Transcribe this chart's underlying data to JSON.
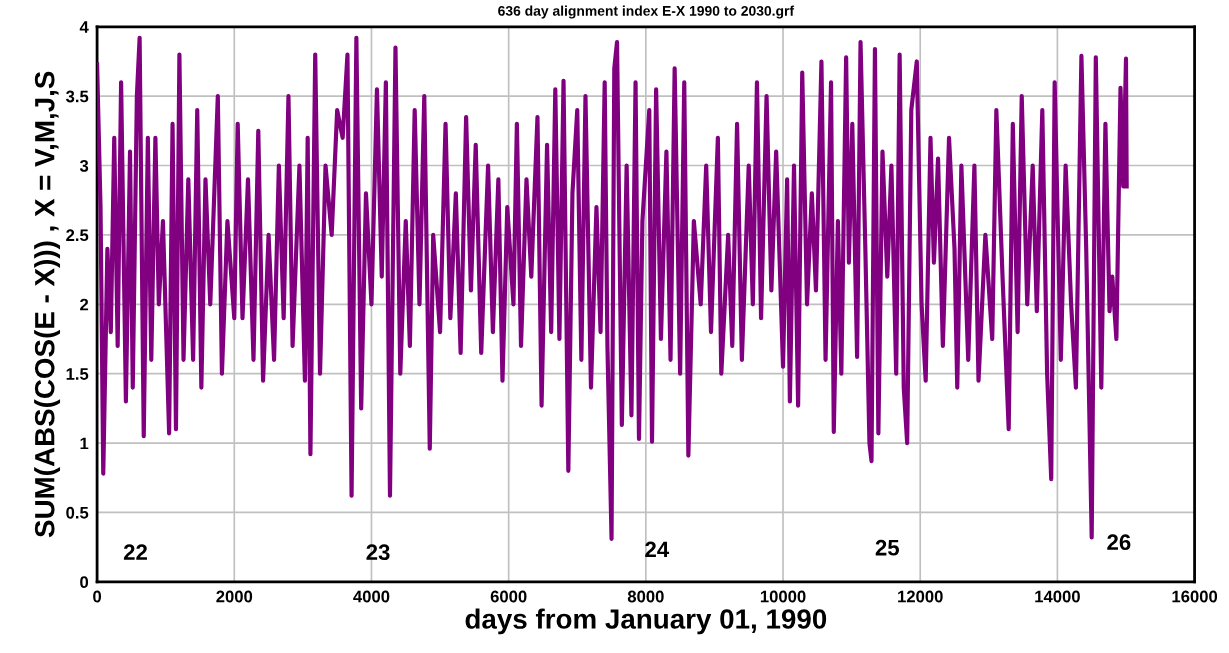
{
  "chart_data": {
    "type": "line",
    "title": "636 day alignment index E-X 1990 to 2030.grf",
    "xlabel": "days from January 01, 1990",
    "ylabel": "SUM(ABS(COS(E - X))) , X = V,M,J,S",
    "x": [
      0,
      50,
      90,
      150,
      200,
      250,
      300,
      350,
      420,
      480,
      520,
      580,
      620,
      680,
      740,
      790,
      850,
      900,
      960,
      1050,
      1100,
      1150,
      1200,
      1260,
      1330,
      1400,
      1460,
      1520,
      1580,
      1650,
      1760,
      1820,
      1900,
      2000,
      2050,
      2120,
      2200,
      2280,
      2350,
      2420,
      2500,
      2580,
      2650,
      2720,
      2790,
      2850,
      2950,
      3030,
      3070,
      3110,
      3180,
      3250,
      3330,
      3420,
      3500,
      3580,
      3650,
      3710,
      3780,
      3850,
      3920,
      4000,
      4080,
      4150,
      4210,
      4270,
      4350,
      4420,
      4500,
      4560,
      4630,
      4700,
      4770,
      4850,
      4900,
      5000,
      5080,
      5150,
      5230,
      5300,
      5380,
      5450,
      5520,
      5600,
      5700,
      5770,
      5850,
      5910,
      5980,
      6070,
      6120,
      6180,
      6260,
      6330,
      6420,
      6480,
      6560,
      6620,
      6680,
      6740,
      6800,
      6870,
      6930,
      7000,
      7060,
      7120,
      7200,
      7280,
      7340,
      7400,
      7440,
      7500,
      7540,
      7580,
      7650,
      7720,
      7790,
      7850,
      7900,
      7950,
      8050,
      8090,
      8150,
      8220,
      8300,
      8360,
      8420,
      8500,
      8560,
      8620,
      8700,
      8800,
      8880,
      8950,
      9050,
      9100,
      9200,
      9260,
      9330,
      9400,
      9500,
      9560,
      9620,
      9680,
      9760,
      9830,
      9900,
      10000,
      10060,
      10100,
      10160,
      10220,
      10280,
      10350,
      10420,
      10480,
      10560,
      10620,
      10700,
      10740,
      10800,
      10850,
      10920,
      10960,
      11010,
      11080,
      11130,
      11200,
      11260,
      11290,
      11340,
      11390,
      11450,
      11520,
      11580,
      11650,
      11700,
      11760,
      11810,
      11870,
      11950,
      12020,
      12080,
      12150,
      12200,
      12260,
      12330,
      12420,
      12500,
      12540,
      12600,
      12700,
      12790,
      12850,
      12950,
      13050,
      13110,
      13200,
      13290,
      13350,
      13420,
      13480,
      13560,
      13640,
      13700,
      13780,
      13850,
      13910,
      13960,
      14050,
      14120,
      14200,
      14270,
      14350,
      14420,
      14500,
      14560,
      14600,
      14640,
      14700,
      14760,
      14800,
      14860,
      14920,
      14960,
      15000,
      15010
    ],
    "series": [
      {
        "color": "#800080",
        "values": [
          3.73,
          2.7,
          0.78,
          2.4,
          1.8,
          3.2,
          1.7,
          3.6,
          1.3,
          3.1,
          1.4,
          3.5,
          3.92,
          1.05,
          3.2,
          1.6,
          3.2,
          2.0,
          2.6,
          1.07,
          3.3,
          1.1,
          3.8,
          1.6,
          2.9,
          1.6,
          3.4,
          1.4,
          2.9,
          2.0,
          3.5,
          1.5,
          2.6,
          1.9,
          3.3,
          1.9,
          2.9,
          1.6,
          3.25,
          1.45,
          2.5,
          1.6,
          3.0,
          1.9,
          3.5,
          1.7,
          3.0,
          1.45,
          3.2,
          0.92,
          3.8,
          1.5,
          3.0,
          2.5,
          3.4,
          3.2,
          3.8,
          0.62,
          3.92,
          1.25,
          2.8,
          2.0,
          3.55,
          2.2,
          3.6,
          0.62,
          3.85,
          1.5,
          2.6,
          1.7,
          3.4,
          2.0,
          3.5,
          0.96,
          2.5,
          1.8,
          3.3,
          1.9,
          2.8,
          1.65,
          3.35,
          2.1,
          3.15,
          1.65,
          3.0,
          1.8,
          2.9,
          1.45,
          2.7,
          2.0,
          3.3,
          1.7,
          2.9,
          2.2,
          3.35,
          1.27,
          3.15,
          1.8,
          3.55,
          1.75,
          3.61,
          0.8,
          2.8,
          3.4,
          1.6,
          3.5,
          1.4,
          2.7,
          1.8,
          3.6,
          1.7,
          0.31,
          3.7,
          3.89,
          1.13,
          3.0,
          1.2,
          3.6,
          1.03,
          2.6,
          3.4,
          1.01,
          3.55,
          1.75,
          3.1,
          1.6,
          3.7,
          1.5,
          3.6,
          0.91,
          2.6,
          2.0,
          3.0,
          1.8,
          3.2,
          1.5,
          2.5,
          1.7,
          3.3,
          1.6,
          3.0,
          2.0,
          3.6,
          1.9,
          3.5,
          2.1,
          3.1,
          1.55,
          2.9,
          1.3,
          3.0,
          1.27,
          3.67,
          2.0,
          2.8,
          2.1,
          3.75,
          1.6,
          3.6,
          1.08,
          2.6,
          1.5,
          3.78,
          2.3,
          3.3,
          1.62,
          3.89,
          2.4,
          1.0,
          0.87,
          3.84,
          1.07,
          3.1,
          2.2,
          3.0,
          1.5,
          3.8,
          1.4,
          1.0,
          3.4,
          3.75,
          2.0,
          1.45,
          3.2,
          2.3,
          3.05,
          1.7,
          3.2,
          2.4,
          1.4,
          3.0,
          1.6,
          3.0,
          1.45,
          2.5,
          1.75,
          3.4,
          2.2,
          1.1,
          3.3,
          1.8,
          3.5,
          2.0,
          3.0,
          1.95,
          3.4,
          1.5,
          0.74,
          3.6,
          1.6,
          3.0,
          2.0,
          1.4,
          3.79,
          2.4,
          0.32,
          3.78,
          2.6,
          1.4,
          3.3,
          1.95,
          2.2,
          1.75,
          3.56,
          2.85,
          3.77,
          2.85
        ]
      }
    ],
    "xlim": [
      0,
      16000
    ],
    "xticks": [
      0,
      2000,
      4000,
      6000,
      8000,
      10000,
      12000,
      14000,
      16000
    ],
    "ylim": [
      0,
      4
    ],
    "yticks": [
      0,
      0.5,
      1,
      1.5,
      2,
      2.5,
      3,
      3.5,
      4
    ],
    "grid": true,
    "marker": "none",
    "line_style": "solid",
    "annotations": [
      "22",
      "23",
      "24",
      "25",
      "26"
    ]
  }
}
